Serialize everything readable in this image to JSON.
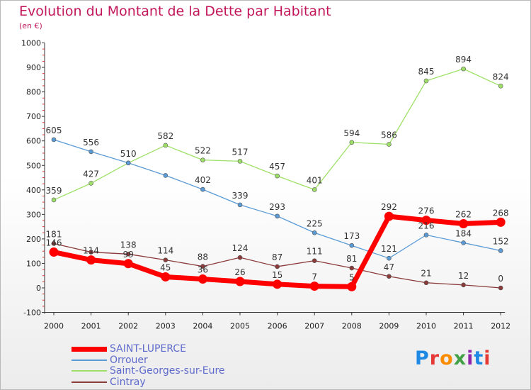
{
  "title": "Evolution du Montant de la Dette par Habitant",
  "subtitle": "(en €)",
  "logo": {
    "text": "Proxiti",
    "letter_colors": [
      "#1e88e5",
      "#e53935",
      "#fb8c00",
      "#43a047",
      "#8e24aa",
      "#1e88e5",
      "#e53935"
    ]
  },
  "chart_data": {
    "type": "line",
    "title": "Evolution du Montant de la Dette par Habitant",
    "ylabel": "(en €)",
    "xlabel": "",
    "x": [
      "2000",
      "2001",
      "2002",
      "2003",
      "2004",
      "2005",
      "2006",
      "2007",
      "2008",
      "2009",
      "2010",
      "2011",
      "2012"
    ],
    "ylim": [
      -100,
      1000
    ],
    "yticks": [
      -100,
      0,
      100,
      200,
      300,
      400,
      500,
      600,
      700,
      800,
      900,
      1000
    ],
    "grid": false,
    "legend": "bottom-left",
    "series": [
      {
        "name": "SAINT-LUPERCE",
        "color": "#ff0000",
        "emphasis": true,
        "values": [
          146,
          114,
          99,
          45,
          36,
          26,
          15,
          7,
          5,
          292,
          276,
          262,
          268
        ],
        "labels": [
          "146",
          "114",
          "99",
          "45",
          "36",
          "26",
          "15",
          "7",
          "5",
          "292",
          "276",
          "262",
          "268"
        ]
      },
      {
        "name": "Orrouer",
        "color": "#5b9bd5",
        "values": [
          605,
          556,
          510,
          459,
          402,
          339,
          293,
          225,
          173,
          121,
          216,
          184,
          152
        ],
        "labels": [
          "605",
          "556",
          "510",
          "",
          "402",
          "339",
          "293",
          "225",
          "173",
          "121",
          "216",
          "184",
          "152"
        ]
      },
      {
        "name": "Saint-Georges-sur-Eure",
        "color": "#9ee067",
        "values": [
          359,
          427,
          510,
          582,
          522,
          517,
          457,
          401,
          594,
          586,
          845,
          894,
          824
        ],
        "labels": [
          "359",
          "427",
          "",
          "582",
          "522",
          "517",
          "457",
          "401",
          "594",
          "586",
          "845",
          "894",
          "824"
        ]
      },
      {
        "name": "Cintray",
        "color": "#8b3a3a",
        "values": [
          181,
          146,
          138,
          114,
          88,
          124,
          87,
          111,
          81,
          47,
          21,
          12,
          0
        ],
        "labels": [
          "181",
          "",
          "138",
          "114",
          "88",
          "124",
          "87",
          "111",
          "81",
          "47",
          "21",
          "12",
          "0"
        ]
      }
    ]
  }
}
